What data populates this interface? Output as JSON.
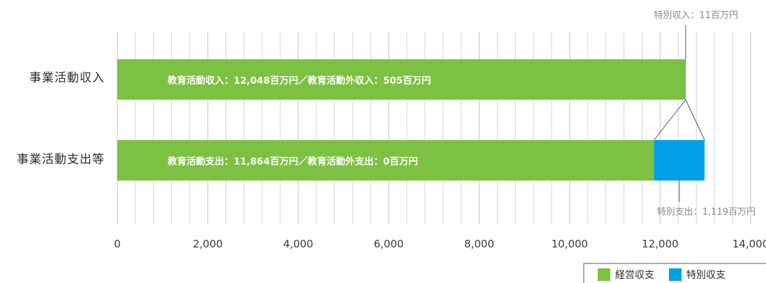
{
  "chart_data": {
    "type": "bar",
    "orientation": "horizontal",
    "stacked": true,
    "categories": [
      "事業活動収入",
      "事業活動支出等"
    ],
    "series": [
      {
        "name": "経営収支",
        "values": [
          12553,
          11864
        ]
      },
      {
        "name": "特別収支",
        "values": [
          11,
          1119
        ]
      }
    ],
    "xlim": [
      0,
      14000
    ],
    "x_ticks": [
      0,
      2000,
      4000,
      6000,
      8000,
      10000,
      12000,
      14000
    ],
    "x_tick_labels": [
      "0",
      "2,000",
      "4,000",
      "6,000",
      "8,000",
      "10,000",
      "12,000",
      "14,000"
    ],
    "bar_labels": [
      "教育活動収入：12,048百万円／教育活動外収入：505百万円",
      "教育活動支出：11,864百万円／教育活動外支出：0百万円"
    ],
    "annotations": {
      "special_income": "特別収入：11百万円",
      "special_expense": "特別支出：1,119百万円"
    },
    "legend_position": "bottom-right",
    "grid": true,
    "colors": {
      "operating": "#7dc142",
      "special": "#00a0e9",
      "grid": "#c9d6e2"
    }
  }
}
